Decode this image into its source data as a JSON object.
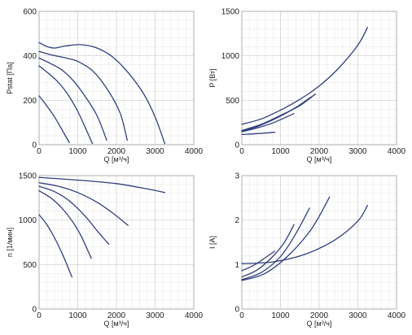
{
  "colors": {
    "curve": "#2f3f7e"
  },
  "chart_data": [
    {
      "type": "line",
      "title": "",
      "xlabel": "Q [м³/ч]",
      "ylabel": "Pstat [Па]",
      "xlim": [
        0,
        4000
      ],
      "ylim": [
        0,
        600
      ],
      "xticks": [
        "0",
        "1000",
        "2000",
        "3000",
        "4000"
      ],
      "yticks": [
        "0",
        "200",
        "400",
        "600"
      ],
      "grid": true,
      "series": [
        {
          "points": [
            [
              0,
              220
            ],
            [
              200,
              175
            ],
            [
              400,
              125
            ],
            [
              600,
              65
            ],
            [
              780,
              10
            ]
          ]
        },
        {
          "points": [
            [
              0,
              355
            ],
            [
              250,
              320
            ],
            [
              500,
              280
            ],
            [
              750,
              225
            ],
            [
              1000,
              150
            ],
            [
              1200,
              75
            ],
            [
              1380,
              5
            ]
          ]
        },
        {
          "points": [
            [
              0,
              390
            ],
            [
              300,
              365
            ],
            [
              600,
              335
            ],
            [
              900,
              285
            ],
            [
              1200,
              215
            ],
            [
              1500,
              130
            ],
            [
              1750,
              20
            ]
          ]
        },
        {
          "points": [
            [
              0,
              420
            ],
            [
              300,
              405
            ],
            [
              700,
              390
            ],
            [
              1000,
              375
            ],
            [
              1400,
              330
            ],
            [
              1800,
              240
            ],
            [
              2100,
              140
            ],
            [
              2280,
              20
            ]
          ]
        },
        {
          "points": [
            [
              0,
              460
            ],
            [
              200,
              442
            ],
            [
              400,
              435
            ],
            [
              700,
              445
            ],
            [
              1100,
              450
            ],
            [
              1500,
              435
            ],
            [
              1900,
              395
            ],
            [
              2300,
              325
            ],
            [
              2700,
              230
            ],
            [
              3000,
              125
            ],
            [
              3250,
              5
            ]
          ]
        }
      ]
    },
    {
      "type": "line",
      "title": "",
      "xlabel": "Q [м³/ч]",
      "ylabel": "P [Вт]",
      "xlim": [
        0,
        4000
      ],
      "ylim": [
        0,
        1500
      ],
      "xticks": [
        "0",
        "1000",
        "2000",
        "3000",
        "4000"
      ],
      "yticks": [
        "0",
        "500",
        "1000",
        "1500"
      ],
      "grid": true,
      "series": [
        {
          "points": [
            [
              0,
              115
            ],
            [
              400,
              125
            ],
            [
              850,
              140
            ]
          ]
        },
        {
          "points": [
            [
              0,
              145
            ],
            [
              400,
              190
            ],
            [
              800,
              245
            ],
            [
              1350,
              350
            ]
          ]
        },
        {
          "points": [
            [
              0,
              150
            ],
            [
              400,
              205
            ],
            [
              900,
              300
            ],
            [
              1400,
              420
            ],
            [
              1800,
              540
            ]
          ]
        },
        {
          "points": [
            [
              0,
              160
            ],
            [
              500,
              230
            ],
            [
              1000,
              330
            ],
            [
              1500,
              440
            ],
            [
              1900,
              570
            ]
          ]
        },
        {
          "points": [
            [
              0,
              230
            ],
            [
              500,
              290
            ],
            [
              1000,
              390
            ],
            [
              1500,
              510
            ],
            [
              2000,
              660
            ],
            [
              2500,
              860
            ],
            [
              3000,
              1120
            ],
            [
              3250,
              1320
            ]
          ]
        }
      ]
    },
    {
      "type": "line",
      "title": "",
      "xlabel": "Q [м³/ч]",
      "ylabel": "n [1/мин]",
      "xlim": [
        0,
        4000
      ],
      "ylim": [
        0,
        1500
      ],
      "xticks": [
        "0",
        "1000",
        "2000",
        "3000",
        "4000"
      ],
      "yticks": [
        "0",
        "500",
        "1000",
        "1500"
      ],
      "grid": true,
      "series": [
        {
          "points": [
            [
              0,
              1060
            ],
            [
              200,
              950
            ],
            [
              400,
              800
            ],
            [
              600,
              620
            ],
            [
              850,
              360
            ]
          ]
        },
        {
          "points": [
            [
              0,
              1330
            ],
            [
              300,
              1250
            ],
            [
              600,
              1130
            ],
            [
              900,
              960
            ],
            [
              1100,
              810
            ],
            [
              1350,
              570
            ]
          ]
        },
        {
          "points": [
            [
              0,
              1380
            ],
            [
              400,
              1320
            ],
            [
              800,
              1210
            ],
            [
              1200,
              1040
            ],
            [
              1500,
              880
            ],
            [
              1800,
              730
            ]
          ]
        },
        {
          "points": [
            [
              0,
              1420
            ],
            [
              500,
              1380
            ],
            [
              1000,
              1310
            ],
            [
              1500,
              1200
            ],
            [
              1900,
              1080
            ],
            [
              2300,
              940
            ]
          ]
        },
        {
          "points": [
            [
              0,
              1480
            ],
            [
              1000,
              1450
            ],
            [
              2000,
              1410
            ],
            [
              2800,
              1350
            ],
            [
              3250,
              1310
            ]
          ]
        }
      ]
    },
    {
      "type": "line",
      "title": "",
      "xlabel": "Q [м³/ч]",
      "ylabel": "I [A]",
      "xlim": [
        0,
        4000
      ],
      "ylim": [
        0,
        3
      ],
      "xticks": [
        "0",
        "1000",
        "2000",
        "3000",
        "4000"
      ],
      "yticks": [
        "0",
        "1",
        "2",
        "3"
      ],
      "grid": true,
      "series": [
        {
          "points": [
            [
              0,
              0.86
            ],
            [
              300,
              0.98
            ],
            [
              550,
              1.12
            ],
            [
              850,
              1.3
            ]
          ]
        },
        {
          "points": [
            [
              0,
              0.72
            ],
            [
              400,
              0.88
            ],
            [
              800,
              1.18
            ],
            [
              1100,
              1.5
            ],
            [
              1350,
              1.9
            ]
          ]
        },
        {
          "points": [
            [
              0,
              0.66
            ],
            [
              500,
              0.82
            ],
            [
              1000,
              1.18
            ],
            [
              1400,
              1.7
            ],
            [
              1750,
              2.27
            ]
          ]
        },
        {
          "points": [
            [
              0,
              0.64
            ],
            [
              600,
              0.8
            ],
            [
              1200,
              1.2
            ],
            [
              1800,
              1.8
            ],
            [
              2270,
              2.52
            ]
          ]
        },
        {
          "points": [
            [
              0,
              1.02
            ],
            [
              800,
              1.06
            ],
            [
              1600,
              1.22
            ],
            [
              2400,
              1.55
            ],
            [
              3000,
              1.98
            ],
            [
              3250,
              2.33
            ]
          ]
        }
      ]
    }
  ]
}
